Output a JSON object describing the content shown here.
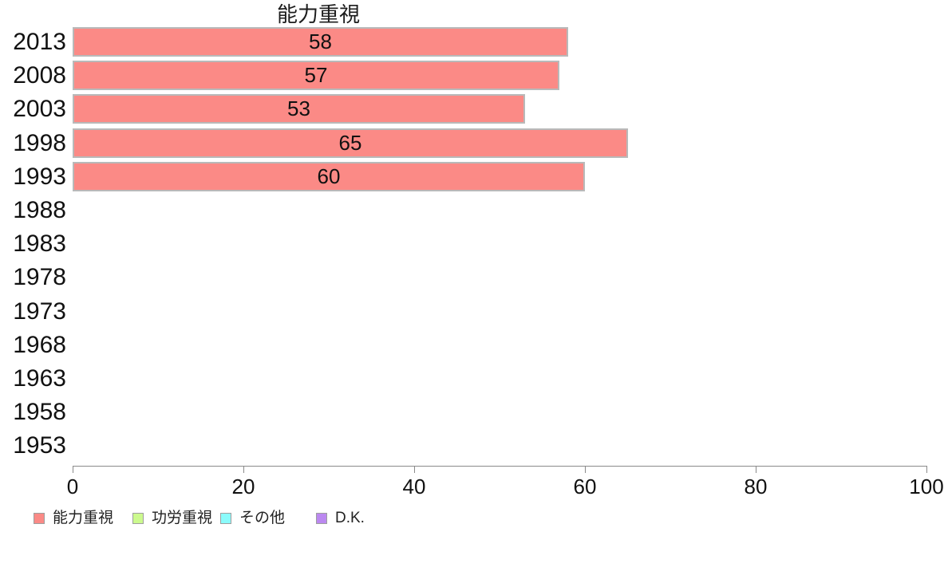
{
  "chart_data": {
    "type": "bar",
    "orientation": "horizontal",
    "title": "能力重視",
    "categories": [
      "2013",
      "2008",
      "2003",
      "1998",
      "1993",
      "1988",
      "1983",
      "1978",
      "1973",
      "1968",
      "1963",
      "1958",
      "1953"
    ],
    "series": [
      {
        "name": "能力重視",
        "color": "#fb8a86",
        "values": [
          58,
          57,
          53,
          65,
          60,
          null,
          null,
          null,
          null,
          null,
          null,
          null,
          null
        ]
      }
    ],
    "bar_value_labels_visible": true,
    "xlabel": "",
    "ylabel": "",
    "xlim": [
      0,
      100
    ],
    "x_ticks": [
      0,
      20,
      40,
      60,
      80,
      100
    ],
    "grid": false,
    "legend_position": "bottom"
  },
  "legend": {
    "items": [
      {
        "label": "能力重視",
        "color": "#fb8a86"
      },
      {
        "label": "功労重視",
        "color": "#ccfa8e"
      },
      {
        "label": "その他",
        "color": "#8bfbfb"
      },
      {
        "label": "D.K.",
        "color": "#bb88f0"
      }
    ]
  },
  "colors": {
    "bar_fill": "#fb8a86",
    "bar_border": "#b9b9b9",
    "axis": "#8a8a8a",
    "text": "#1c1c1c",
    "background": "#ffffff"
  }
}
